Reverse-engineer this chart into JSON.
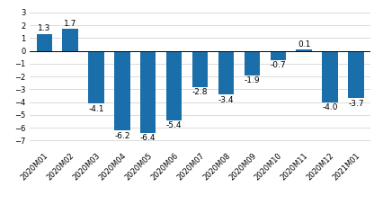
{
  "categories": [
    "2020M01",
    "2020M02",
    "2020M03",
    "2020M04",
    "2020M05",
    "2020M06",
    "2020M07",
    "2020M08",
    "2020M09",
    "2020M10",
    "2020M11",
    "2020M12",
    "2021M01"
  ],
  "values": [
    1.3,
    1.7,
    -4.1,
    -6.2,
    -6.4,
    -5.4,
    -2.8,
    -3.4,
    -1.9,
    -0.7,
    0.1,
    -4.0,
    -3.7
  ],
  "bar_color": "#1a6faa",
  "ylim": [
    -7.5,
    3.5
  ],
  "yticks": [
    -7,
    -6,
    -5,
    -4,
    -3,
    -2,
    -1,
    0,
    1,
    2,
    3
  ],
  "background_color": "#ffffff",
  "grid_color": "#cccccc",
  "label_fontsize": 6.5,
  "tick_fontsize": 6.0,
  "bar_width": 0.6
}
